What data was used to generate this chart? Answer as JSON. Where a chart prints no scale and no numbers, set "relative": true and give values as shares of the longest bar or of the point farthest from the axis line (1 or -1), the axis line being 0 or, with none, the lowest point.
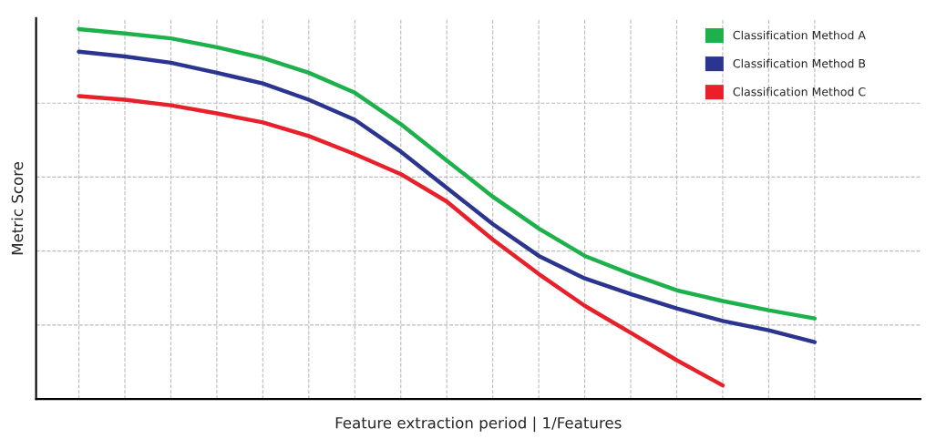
{
  "chart_data": {
    "type": "line",
    "relative": true,
    "xlabel": "Feature extraction period | 1/Features",
    "ylabel": "Metric Score",
    "categories": [
      null,
      null,
      null,
      null,
      null,
      null,
      null,
      null,
      null,
      null,
      null,
      null,
      null,
      null,
      null,
      null,
      null
    ],
    "series": [
      {
        "name": "Classification Method A",
        "color": "#1db14b",
        "values": [
          1,
          0.988,
          0.975,
          0.951,
          0.922,
          0.882,
          0.828,
          0.743,
          0.645,
          0.547,
          0.461,
          0.387,
          0.338,
          0.294,
          0.265,
          0.24,
          0.218
        ]
      },
      {
        "name": "Classification Method B",
        "color": "#2b3590",
        "values": [
          0.939,
          0.926,
          0.909,
          0.882,
          0.853,
          0.809,
          0.755,
          0.669,
          0.571,
          0.473,
          0.387,
          0.326,
          0.284,
          0.245,
          0.211,
          0.186,
          0.154
        ]
      },
      {
        "name": "Classification Method C",
        "color": "#e8202a",
        "values": [
          0.819,
          0.809,
          0.794,
          0.772,
          0.748,
          0.711,
          0.662,
          0.608,
          0.534,
          0.431,
          0.338,
          0.252,
          0.179,
          0.105,
          0.037,
          null,
          null
        ]
      }
    ],
    "grid": true,
    "legend": "top right",
    "line_style": "solid",
    "marker": "none",
    "tick_labels": false
  }
}
